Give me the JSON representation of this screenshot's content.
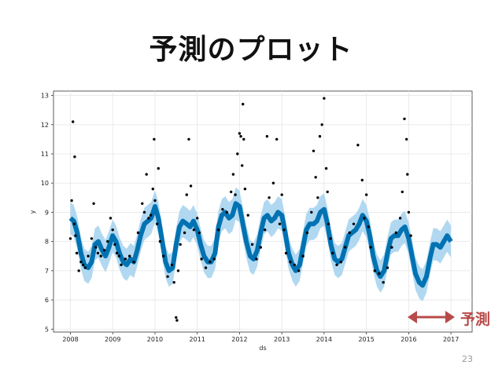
{
  "slide": {
    "title": "予測のプロット",
    "forecast_label": "予測",
    "page_number": "23"
  },
  "colors": {
    "forecast_line": "#0072b2",
    "uncertainty_band": "#a8d4ef",
    "observed_points": "#000000",
    "annotation_arrow": "#b84a4a",
    "grid": "#e6e6e6"
  },
  "chart_data": {
    "type": "line",
    "xlabel": "ds",
    "ylabel": "y",
    "xlim": [
      2007.6,
      2017.5
    ],
    "ylim": [
      4.9,
      13.15
    ],
    "x_ticks": [
      "2008",
      "2009",
      "2010",
      "2011",
      "2012",
      "2013",
      "2014",
      "2015",
      "2016",
      "2017"
    ],
    "y_ticks": [
      5,
      6,
      7,
      8,
      9,
      10,
      11,
      12,
      13
    ],
    "grid": true,
    "forecast_start": 2016.0,
    "forecast_end": 2017.0,
    "series": [
      {
        "kind": "forecast",
        "x": [
          2008.0,
          2008.08,
          2008.16,
          2008.25,
          2008.33,
          2008.42,
          2008.5,
          2008.58,
          2008.66,
          2008.75,
          2008.83,
          2008.91,
          2009.0,
          2009.08,
          2009.16,
          2009.25,
          2009.33,
          2009.42,
          2009.5,
          2009.58,
          2009.66,
          2009.75,
          2009.83,
          2009.91,
          2010.0,
          2010.08,
          2010.16,
          2010.25,
          2010.33,
          2010.42,
          2010.5,
          2010.58,
          2010.66,
          2010.75,
          2010.83,
          2010.91,
          2011.0,
          2011.08,
          2011.16,
          2011.25,
          2011.33,
          2011.42,
          2011.5,
          2011.58,
          2011.66,
          2011.75,
          2011.83,
          2011.91,
          2012.0,
          2012.08,
          2012.16,
          2012.25,
          2012.33,
          2012.42,
          2012.5,
          2012.58,
          2012.66,
          2012.75,
          2012.83,
          2012.91,
          2013.0,
          2013.08,
          2013.16,
          2013.25,
          2013.33,
          2013.42,
          2013.5,
          2013.58,
          2013.66,
          2013.75,
          2013.83,
          2013.91,
          2014.0,
          2014.08,
          2014.16,
          2014.25,
          2014.33,
          2014.42,
          2014.5,
          2014.58,
          2014.66,
          2014.75,
          2014.83,
          2014.91,
          2015.0,
          2015.08,
          2015.16,
          2015.25,
          2015.33,
          2015.42,
          2015.5,
          2015.58,
          2015.66,
          2015.75,
          2015.83,
          2015.91,
          2016.0,
          2016.08,
          2016.16,
          2016.25,
          2016.33,
          2016.42,
          2016.5,
          2016.58,
          2016.66,
          2016.75,
          2016.83,
          2016.91,
          2017.0
        ],
        "yhat": [
          8.8,
          8.7,
          8.3,
          7.6,
          7.2,
          7.1,
          7.3,
          7.9,
          8.0,
          7.7,
          7.5,
          7.8,
          8.2,
          8.0,
          7.6,
          7.3,
          7.2,
          7.4,
          7.3,
          7.7,
          8.2,
          8.6,
          8.7,
          8.8,
          9.2,
          8.8,
          8.1,
          7.3,
          7.0,
          7.1,
          7.9,
          8.5,
          8.7,
          8.6,
          8.5,
          8.7,
          8.4,
          7.9,
          7.5,
          7.3,
          7.3,
          7.6,
          8.5,
          8.9,
          9.0,
          8.8,
          8.9,
          9.3,
          9.2,
          8.6,
          8.0,
          7.5,
          7.4,
          7.7,
          8.3,
          8.8,
          8.9,
          8.7,
          8.8,
          9.0,
          8.9,
          8.3,
          7.6,
          7.2,
          7.0,
          7.2,
          7.8,
          8.4,
          8.6,
          8.6,
          8.7,
          9.0,
          9.1,
          8.6,
          7.9,
          7.4,
          7.3,
          7.4,
          7.8,
          8.2,
          8.3,
          8.4,
          8.6,
          8.9,
          8.7,
          8.2,
          7.5,
          7.0,
          6.8,
          7.0,
          7.6,
          8.1,
          8.2,
          8.2,
          8.4,
          8.5,
          8.1,
          7.5,
          6.9,
          6.6,
          6.5,
          6.8,
          7.4,
          7.9,
          7.9,
          7.8,
          8.0,
          8.2,
          8.0
        ],
        "band_halfwidth": 0.55
      },
      {
        "kind": "observed",
        "x": [
          2008.0,
          2008.03,
          2008.06,
          2008.09,
          2008.1,
          2008.12,
          2008.15,
          2008.2,
          2008.25,
          2008.3,
          2008.35,
          2008.42,
          2008.5,
          2008.55,
          2008.6,
          2008.65,
          2008.72,
          2008.8,
          2008.88,
          2008.95,
          2009.0,
          2009.05,
          2009.1,
          2009.15,
          2009.2,
          2009.3,
          2009.4,
          2009.5,
          2009.6,
          2009.7,
          2009.75,
          2009.8,
          2009.85,
          2009.9,
          2009.95,
          2009.98,
          2010.0,
          2010.05,
          2010.08,
          2010.12,
          2010.2,
          2010.3,
          2010.4,
          2010.45,
          2010.5,
          2010.52,
          2010.55,
          2010.6,
          2010.7,
          2010.75,
          2010.8,
          2010.85,
          2010.92,
          2011.0,
          2011.05,
          2011.1,
          2011.2,
          2011.3,
          2011.4,
          2011.5,
          2011.6,
          2011.7,
          2011.8,
          2011.85,
          2011.9,
          2011.95,
          2012.0,
          2012.03,
          2012.06,
          2012.08,
          2012.1,
          2012.13,
          2012.2,
          2012.3,
          2012.4,
          2012.5,
          2012.6,
          2012.65,
          2012.7,
          2012.8,
          2012.88,
          2012.95,
          2013.0,
          2013.05,
          2013.1,
          2013.2,
          2013.3,
          2013.4,
          2013.5,
          2013.6,
          2013.7,
          2013.75,
          2013.8,
          2013.85,
          2013.9,
          2013.95,
          2014.0,
          2014.05,
          2014.08,
          2014.1,
          2014.15,
          2014.2,
          2014.3,
          2014.4,
          2014.5,
          2014.6,
          2014.7,
          2014.8,
          2014.9,
          2014.95,
          2015.0,
          2015.05,
          2015.1,
          2015.2,
          2015.3,
          2015.4,
          2015.5,
          2015.6,
          2015.7,
          2015.8,
          2015.85,
          2015.9,
          2015.95,
          2015.97,
          2016.0,
          2016.05
        ],
        "y": [
          8.1,
          9.4,
          12.1,
          8.6,
          10.9,
          8.2,
          7.6,
          7.0,
          7.3,
          7.2,
          7.1,
          7.5,
          8.1,
          9.3,
          7.8,
          7.6,
          7.5,
          7.7,
          8.0,
          8.8,
          8.4,
          7.9,
          7.6,
          7.5,
          7.2,
          7.4,
          7.5,
          7.3,
          8.3,
          9.3,
          9.0,
          10.3,
          8.8,
          8.9,
          9.8,
          11.5,
          9.4,
          8.6,
          10.5,
          8.0,
          7.5,
          6.8,
          7.2,
          6.6,
          5.4,
          5.3,
          7.0,
          7.9,
          8.3,
          9.6,
          11.5,
          9.9,
          8.4,
          8.8,
          8.3,
          7.4,
          7.1,
          7.3,
          7.4,
          8.4,
          9.1,
          9.0,
          9.7,
          10.3,
          9.6,
          11.0,
          11.7,
          11.6,
          10.6,
          12.7,
          11.5,
          9.8,
          8.9,
          7.9,
          7.4,
          7.8,
          8.4,
          11.6,
          9.5,
          10.0,
          11.5,
          8.6,
          9.6,
          8.4,
          7.6,
          7.3,
          7.2,
          7.0,
          7.5,
          8.3,
          9.0,
          11.1,
          10.2,
          9.5,
          11.6,
          12.0,
          12.9,
          10.5,
          9.7,
          8.6,
          8.1,
          7.6,
          7.2,
          7.3,
          7.8,
          8.3,
          8.6,
          11.3,
          10.1,
          8.8,
          9.6,
          8.5,
          7.8,
          7.0,
          6.9,
          6.6,
          7.1,
          7.8,
          8.3,
          8.8,
          9.7,
          12.2,
          11.5,
          10.3,
          9.0,
          8.2
        ]
      }
    ]
  }
}
